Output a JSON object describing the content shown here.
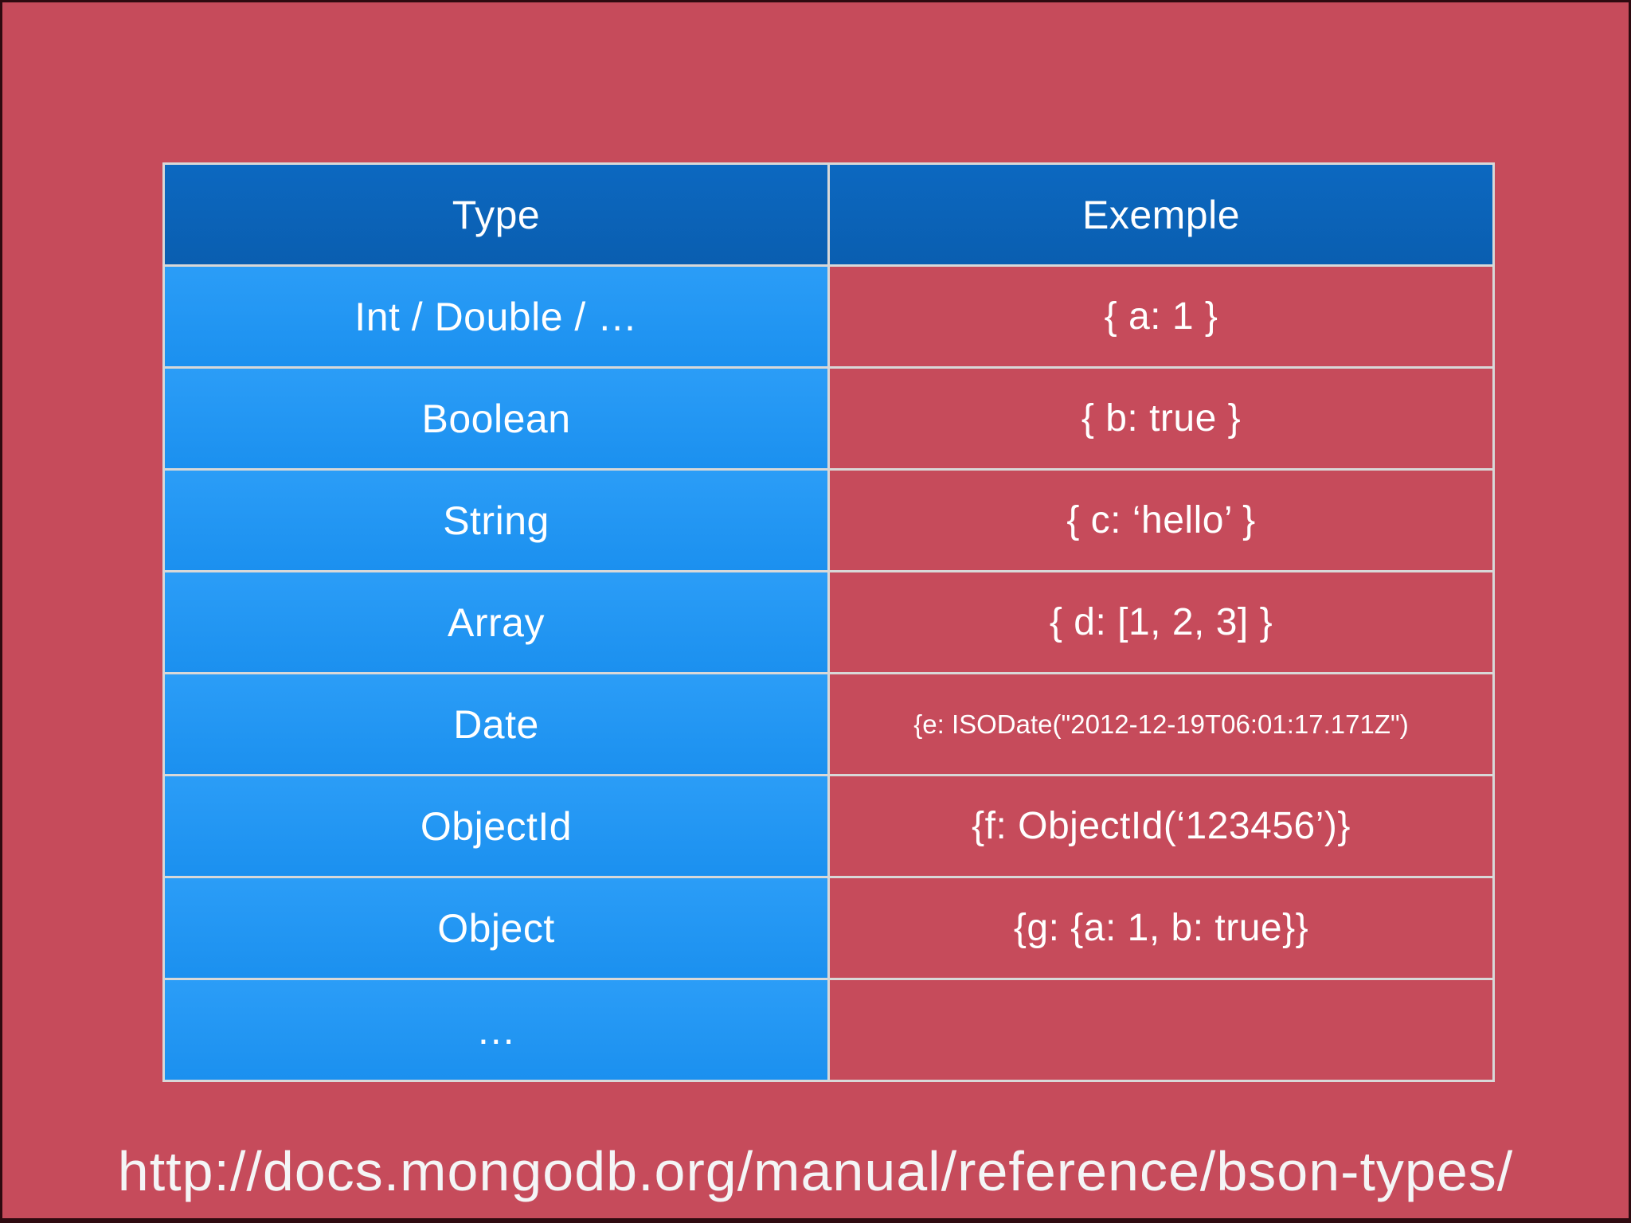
{
  "slide": {
    "background_color": "#C64B5B",
    "frame_color": "#2E0A10"
  },
  "colors": {
    "header_blue": "#0B62B8",
    "row_blue": "#1E96F5",
    "cell_border": "#D8D8D8",
    "text": "#FFFFFF"
  },
  "table": {
    "headers": [
      "Type",
      "Exemple"
    ],
    "rows": [
      {
        "type": "Int / Double / …",
        "example": "{ a: 1 }"
      },
      {
        "type": "Boolean",
        "example": "{ b: true }"
      },
      {
        "type": "String",
        "example": "{ c: ‘hello’ }"
      },
      {
        "type": "Array",
        "example": "{ d: [1, 2, 3] }"
      },
      {
        "type": "Date",
        "example": "{e: ISODate(\"2012-12-19T06:01:17.171Z\")"
      },
      {
        "type": "ObjectId",
        "example": "{f: ObjectId(‘123456’)}"
      },
      {
        "type": "Object",
        "example": "{g: {a: 1, b: true}}"
      },
      {
        "type": "…",
        "example": ""
      }
    ]
  },
  "footer": {
    "url": "http://docs.mongodb.org/manual/reference/bson-types/"
  }
}
